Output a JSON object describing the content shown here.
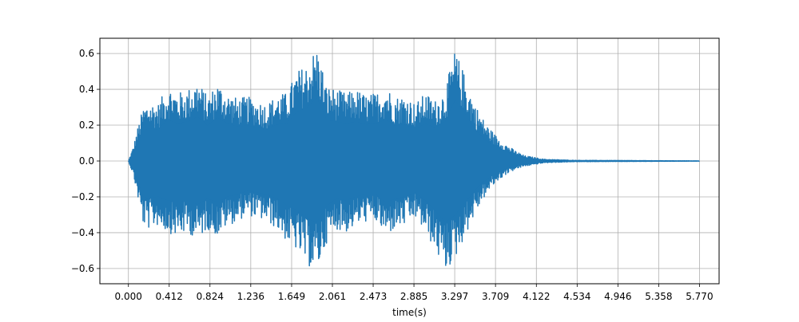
{
  "chart_data": {
    "type": "line",
    "title": "",
    "xlabel": "time(s)",
    "ylabel": "",
    "grid": true,
    "xlim": [
      -0.2885,
      5.9685
    ],
    "ylim": [
      -0.685,
      0.685
    ],
    "x_ticks": [
      0.0,
      0.412,
      0.824,
      1.236,
      1.649,
      2.061,
      2.473,
      2.885,
      3.297,
      3.709,
      4.122,
      4.534,
      4.946,
      5.358,
      5.77
    ],
    "x_tick_labels": [
      "0.000",
      "0.412",
      "0.824",
      "1.236",
      "1.649",
      "2.061",
      "2.473",
      "2.885",
      "3.297",
      "3.709",
      "4.122",
      "4.534",
      "4.946",
      "5.358",
      "5.770"
    ],
    "y_ticks": [
      -0.6,
      -0.4,
      -0.2,
      0.0,
      0.2,
      0.4,
      0.6
    ],
    "y_tick_labels": [
      "−0.6",
      "−0.4",
      "−0.2",
      "0.0",
      "0.2",
      "0.4",
      "0.6"
    ],
    "series": [
      {
        "color": "#1f77b4",
        "x": [
          0.0,
          0.05,
          0.1,
          0.15,
          0.2,
          0.3,
          0.4,
          0.5,
          0.6,
          0.7,
          0.8,
          0.9,
          1.0,
          1.1,
          1.2,
          1.3,
          1.4,
          1.5,
          1.6,
          1.7,
          1.8,
          1.9,
          1.95,
          2.0,
          2.1,
          2.2,
          2.3,
          2.4,
          2.5,
          2.6,
          2.7,
          2.8,
          2.9,
          3.0,
          3.1,
          3.2,
          3.3,
          3.4,
          3.5,
          3.6,
          3.7,
          3.8,
          3.9,
          4.0,
          4.2,
          4.5,
          4.9,
          5.3,
          5.77
        ],
        "upper": [
          0.0,
          0.08,
          0.2,
          0.3,
          0.33,
          0.32,
          0.42,
          0.38,
          0.4,
          0.45,
          0.36,
          0.44,
          0.38,
          0.35,
          0.36,
          0.34,
          0.32,
          0.37,
          0.38,
          0.5,
          0.54,
          0.64,
          0.55,
          0.42,
          0.4,
          0.38,
          0.4,
          0.37,
          0.38,
          0.42,
          0.36,
          0.37,
          0.32,
          0.38,
          0.34,
          0.4,
          0.62,
          0.48,
          0.32,
          0.22,
          0.15,
          0.1,
          0.06,
          0.03,
          0.01,
          0.004,
          0.003,
          0.002,
          0.001
        ],
        "lower": [
          0.0,
          -0.08,
          -0.22,
          -0.36,
          -0.38,
          -0.36,
          -0.4,
          -0.42,
          -0.4,
          -0.44,
          -0.38,
          -0.42,
          -0.36,
          -0.34,
          -0.3,
          -0.32,
          -0.34,
          -0.38,
          -0.45,
          -0.5,
          -0.58,
          -0.62,
          -0.55,
          -0.46,
          -0.38,
          -0.4,
          -0.36,
          -0.34,
          -0.34,
          -0.42,
          -0.38,
          -0.36,
          -0.32,
          -0.4,
          -0.5,
          -0.62,
          -0.55,
          -0.42,
          -0.3,
          -0.2,
          -0.13,
          -0.08,
          -0.05,
          -0.03,
          -0.01,
          -0.004,
          -0.003,
          -0.002,
          -0.001
        ]
      }
    ]
  }
}
